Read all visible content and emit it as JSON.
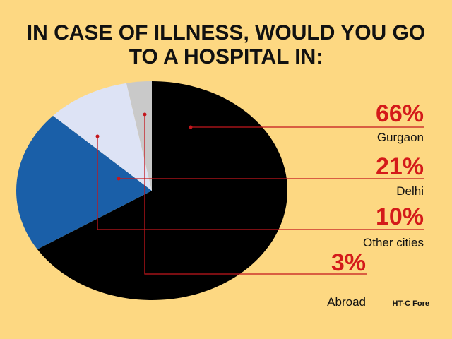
{
  "chart_data": {
    "type": "pie",
    "title": "IN CASE OF ILLNESS, WOULD YOU GO TO A HOSPITAL IN:",
    "categories": [
      "Gurgaon",
      "Delhi",
      "Other cities",
      "Abroad"
    ],
    "values": [
      66,
      21,
      10,
      3
    ],
    "value_labels": [
      "66%",
      "21%",
      "10%",
      "3%"
    ],
    "colors": [
      "#000000",
      "#1a5fa8",
      "#dde3f5",
      "#c9c9c9"
    ],
    "credit": "HT-C Fore"
  }
}
